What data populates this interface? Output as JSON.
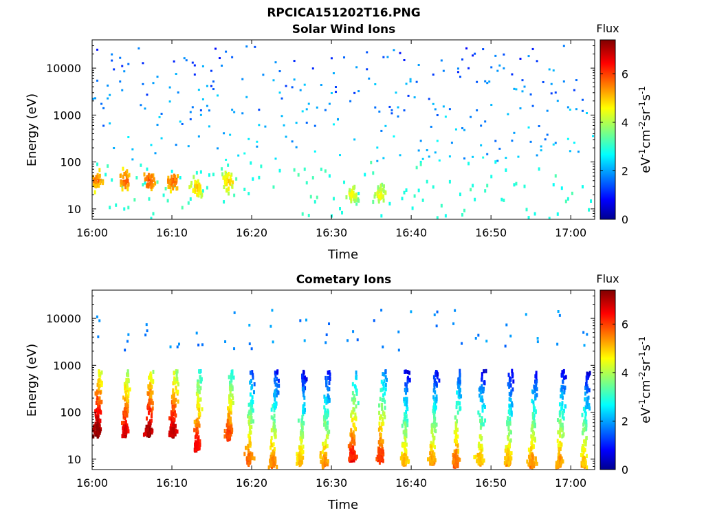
{
  "figure_title": "RPCICA151202T16.PNG",
  "colorbar": {
    "label": "Flux",
    "unit_label_parts": [
      "eV",
      "-1",
      "cm",
      "-2",
      "sr",
      "-1",
      "s",
      "-1"
    ],
    "ticks": [
      0,
      2,
      4,
      6
    ],
    "range": [
      0,
      7.4
    ],
    "colormap": "jet"
  },
  "chart_data": [
    {
      "type": "heatmap",
      "title": "Solar Wind Ions",
      "xlabel": "Time",
      "ylabel": "Energy (eV)",
      "x_ticks": [
        "16:00",
        "16:10",
        "16:20",
        "16:30",
        "16:40",
        "16:50",
        "17:00"
      ],
      "x_range_minutes_after_16h": [
        0,
        63
      ],
      "y_scale": "log",
      "y_ticks": [
        10,
        100,
        1000,
        10000
      ],
      "y_range_eV": [
        6,
        40000
      ],
      "color_range": [
        0,
        7.4
      ],
      "hotspots": [
        {
          "time": "16:00.5",
          "energy_eV": 40,
          "flux": 5.6
        },
        {
          "time": "16:04",
          "energy_eV": 40,
          "flux": 5.8
        },
        {
          "time": "16:07",
          "energy_eV": 40,
          "flux": 5.9
        },
        {
          "time": "16:10",
          "energy_eV": 40,
          "flux": 5.8
        },
        {
          "time": "16:13",
          "energy_eV": 28,
          "flux": 5.0
        },
        {
          "time": "16:17",
          "energy_eV": 38,
          "flux": 5.0
        },
        {
          "time": "16:32.5",
          "energy_eV": 20,
          "flux": 4.6
        },
        {
          "time": "16:36",
          "energy_eV": 20,
          "flux": 4.6
        }
      ],
      "background": {
        "energy_range_eV": [
          100,
          30000
        ],
        "flux": 1.8
      },
      "low_energy_band": {
        "energy_range_eV": [
          6,
          100
        ],
        "flux": 2.8
      }
    },
    {
      "type": "heatmap",
      "title": "Cometary Ions",
      "xlabel": "Time",
      "ylabel": "Energy (eV)",
      "x_ticks": [
        "16:00",
        "16:10",
        "16:20",
        "16:30",
        "16:40",
        "16:50",
        "17:00"
      ],
      "x_range_minutes_after_16h": [
        0,
        63
      ],
      "y_scale": "log",
      "y_ticks": [
        10,
        100,
        1000,
        10000
      ],
      "y_range_eV": [
        6,
        40000
      ],
      "color_range": [
        0,
        7.4
      ],
      "bursts": [
        {
          "time": "16:00.5",
          "peak_energy_eV": 40,
          "flux": 7.2
        },
        {
          "time": "16:04",
          "peak_energy_eV": 40,
          "flux": 6.6
        },
        {
          "time": "16:07",
          "peak_energy_eV": 40,
          "flux": 7.0
        },
        {
          "time": "16:10",
          "peak_energy_eV": 40,
          "flux": 6.8
        },
        {
          "time": "16:13",
          "peak_energy_eV": 20,
          "flux": 6.4
        },
        {
          "time": "16:17",
          "peak_energy_eV": 35,
          "flux": 5.9
        },
        {
          "time": "16:19.5",
          "peak_energy_eV": 10,
          "flux": 5.6
        },
        {
          "time": "16:22.5",
          "peak_energy_eV": 9,
          "flux": 5.4
        },
        {
          "time": "16:26",
          "peak_energy_eV": 10,
          "flux": 5.0
        },
        {
          "time": "16:29",
          "peak_energy_eV": 9,
          "flux": 5.3
        },
        {
          "time": "16:32.5",
          "peak_energy_eV": 12,
          "flux": 6.2
        },
        {
          "time": "16:36",
          "peak_energy_eV": 12,
          "flux": 6.0
        },
        {
          "time": "16:39",
          "peak_energy_eV": 10,
          "flux": 5.0
        },
        {
          "time": "16:42.5",
          "peak_energy_eV": 10,
          "flux": 5.2
        },
        {
          "time": "16:45.5",
          "peak_energy_eV": 9,
          "flux": 5.6
        },
        {
          "time": "16:48.5",
          "peak_energy_eV": 10,
          "flux": 5.0
        },
        {
          "time": "16:52",
          "peak_energy_eV": 10,
          "flux": 5.0
        },
        {
          "time": "16:55",
          "peak_energy_eV": 9,
          "flux": 5.3
        },
        {
          "time": "16:58.5",
          "peak_energy_eV": 9,
          "flux": 5.3
        },
        {
          "time": "17:01.5",
          "peak_energy_eV": 9,
          "flux": 5.0
        }
      ]
    }
  ]
}
